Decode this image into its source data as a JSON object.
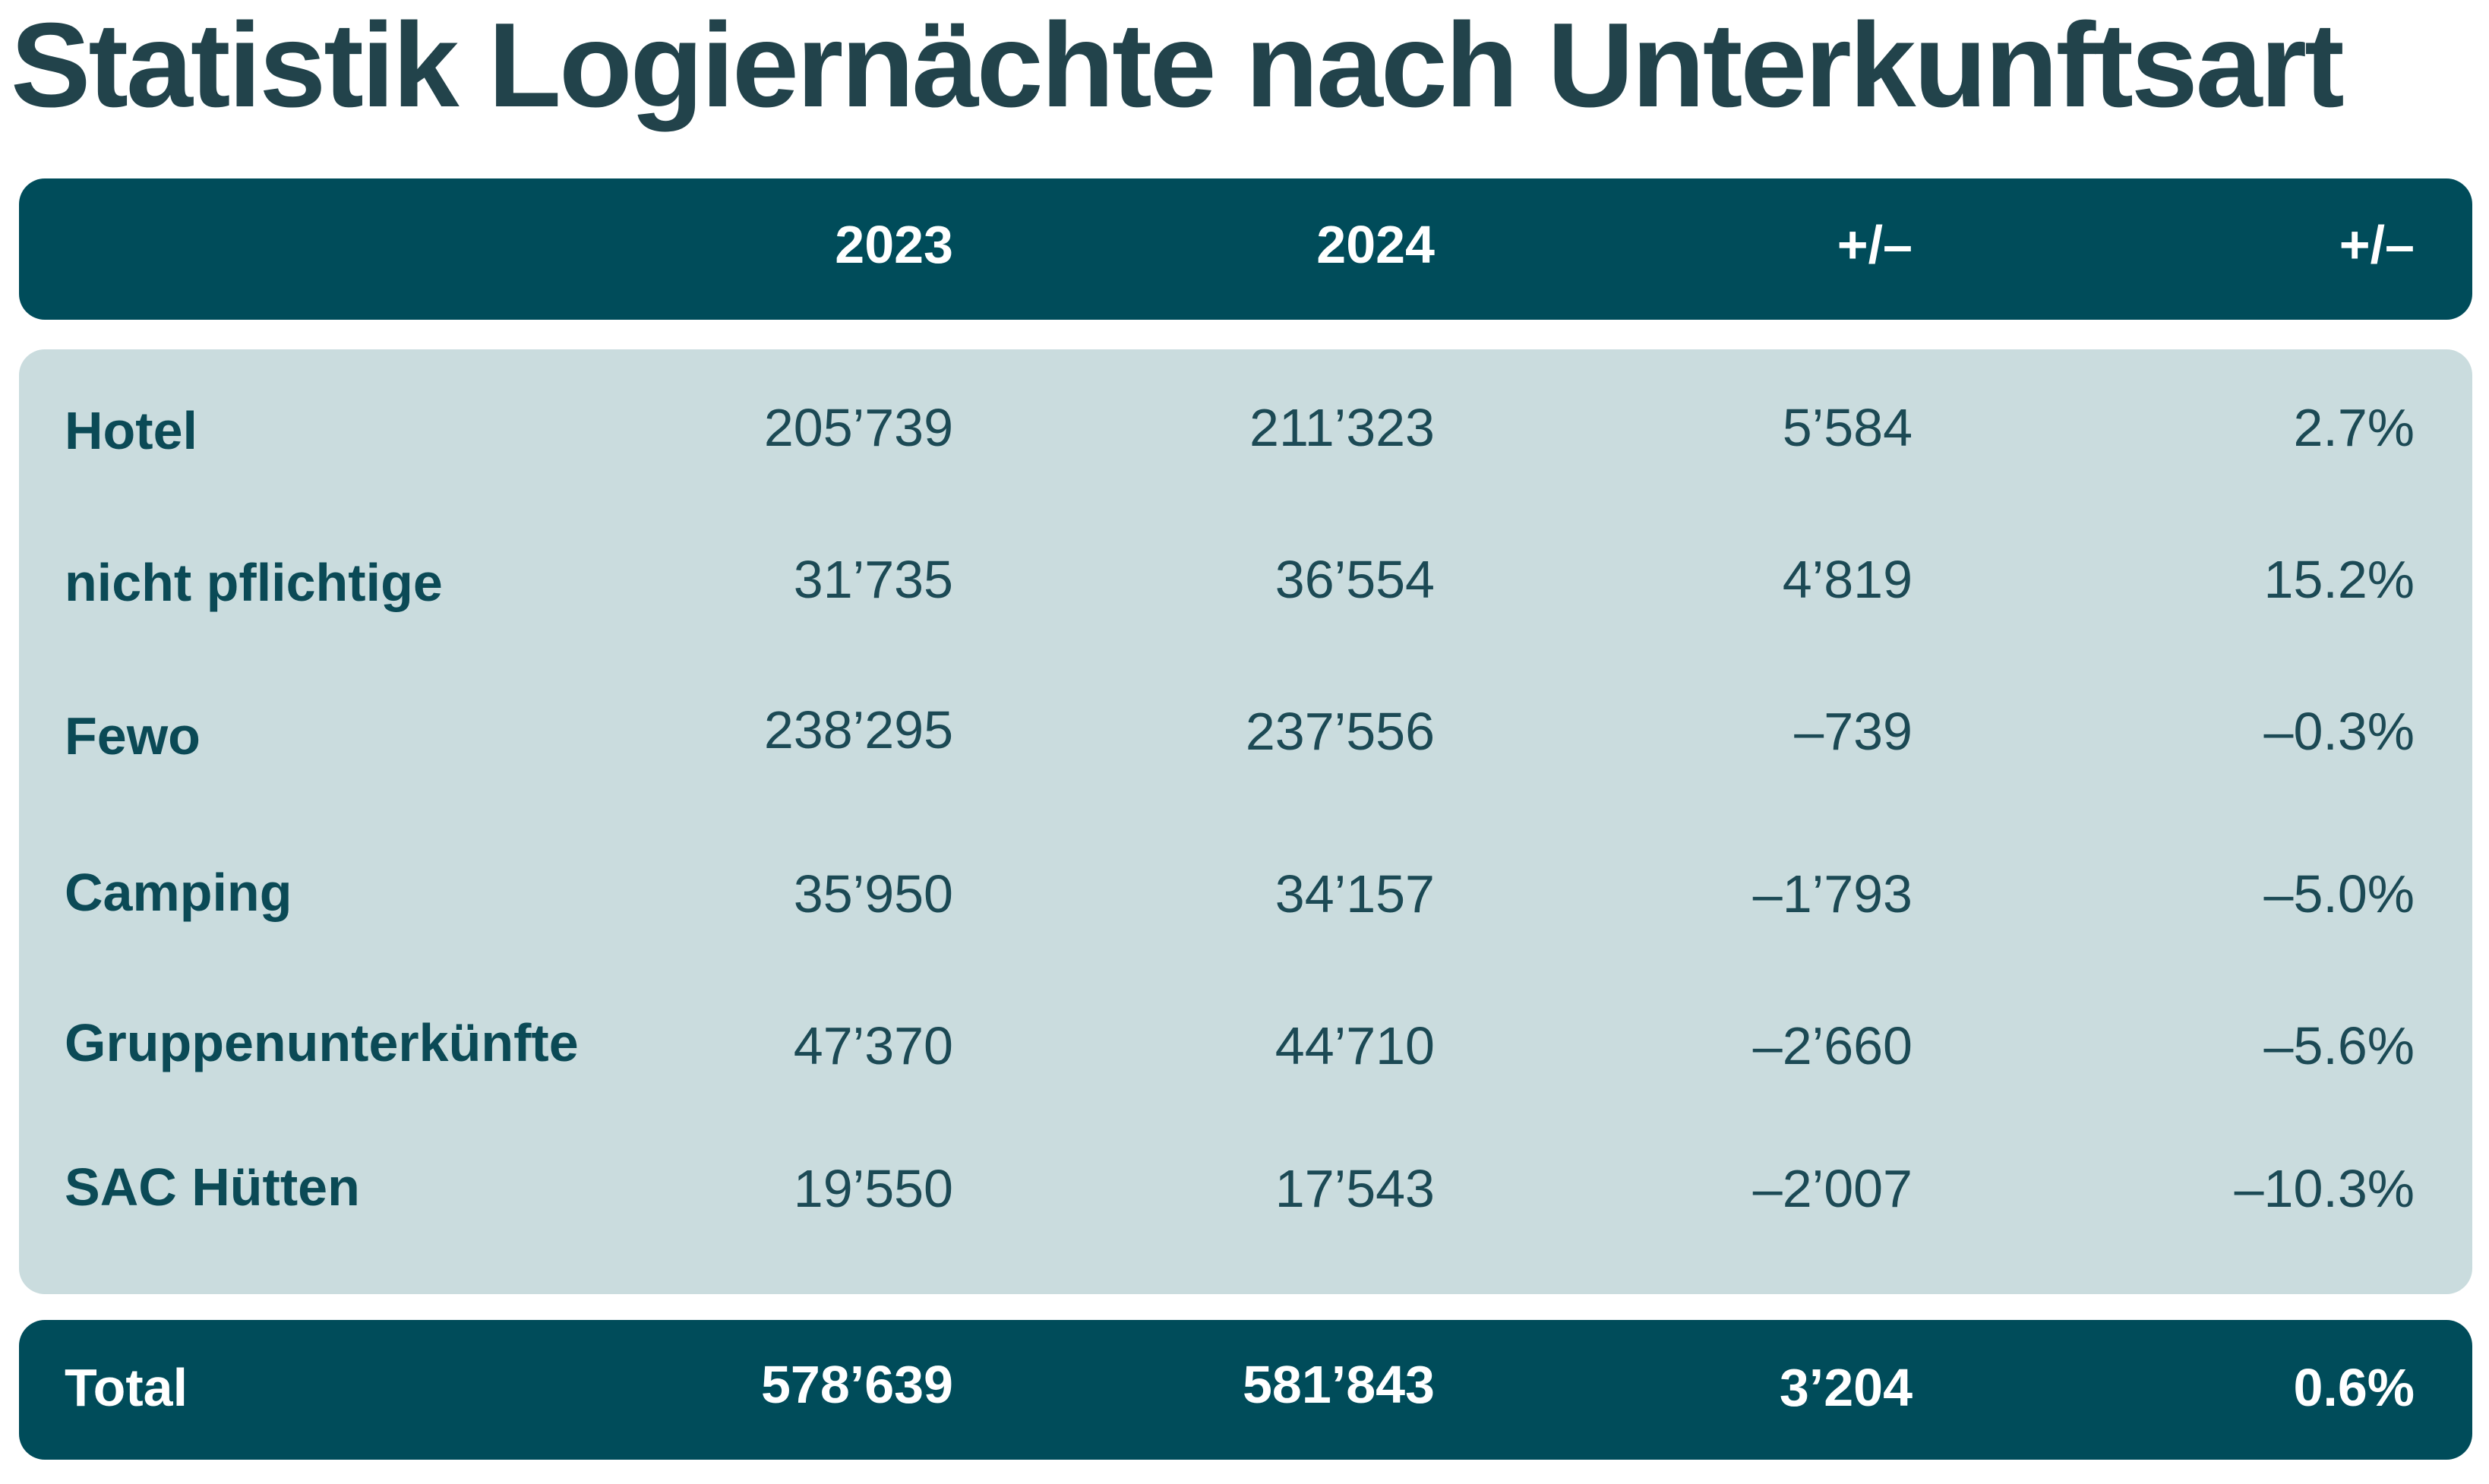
{
  "title": "Statistik Logiernächte nach Unterkunftsart",
  "colors": {
    "title": "#22434b",
    "header_background": "#004c5a",
    "body_background": "#cadcde",
    "label_text": "#0b4a56",
    "value_text": "#1c4a55",
    "header_text": "#ffffff"
  },
  "chart_data": {
    "type": "table",
    "columns": [
      "",
      "2023",
      "2024",
      "+/–",
      "+/–"
    ],
    "rows": [
      {
        "label": "Hotel",
        "v2023": "205’739",
        "v2024": "211’323",
        "diff": "5’584",
        "pct": "2.7%"
      },
      {
        "label": "nicht pflichtige",
        "v2023": "31’735",
        "v2024": "36’554",
        "diff": "4’819",
        "pct": "15.2%"
      },
      {
        "label": "Fewo",
        "v2023": "238’295",
        "v2024": "237’556",
        "diff": "–739",
        "pct": "–0.3%"
      },
      {
        "label": "Camping",
        "v2023": "35’950",
        "v2024": "34’157",
        "diff": "–1’793",
        "pct": "–5.0%"
      },
      {
        "label": "Gruppenunterkünfte",
        "v2023": "47’370",
        "v2024": "44’710",
        "diff": "–2’660",
        "pct": "–5.6%"
      },
      {
        "label": "SAC Hütten",
        "v2023": "19’550",
        "v2024": "17’543",
        "diff": "–2’007",
        "pct": "–10.3%"
      }
    ],
    "total": {
      "label": "Total",
      "v2023": "578’639",
      "v2024": "581’843",
      "diff": "3’204",
      "pct": "0.6%"
    }
  }
}
